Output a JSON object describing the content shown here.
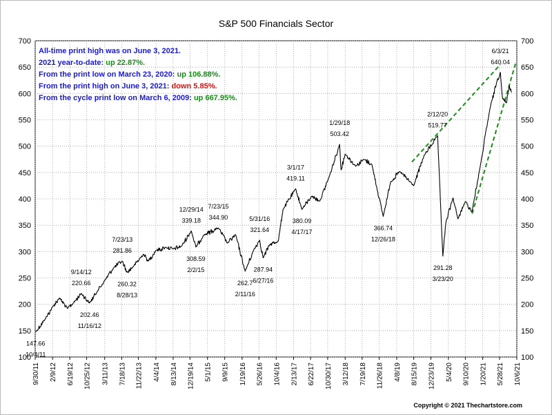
{
  "chart_data": {
    "type": "line",
    "title": "S&P 500 Financials Sector",
    "xlabel": "",
    "ylabel": "",
    "ylim": [
      100,
      700
    ],
    "yticks": [
      100,
      150,
      200,
      250,
      300,
      350,
      400,
      450,
      500,
      550,
      600,
      650,
      700
    ],
    "grid": true,
    "x_ticks": [
      "9/30/11",
      "2/9/12",
      "6/19/12",
      "10/25/12",
      "3/11/13",
      "7/18/13",
      "11/22/13",
      "4/4/14",
      "8/13/14",
      "12/19/14",
      "5/1/15",
      "9/9/15",
      "1/19/16",
      "5/26/16",
      "10/4/16",
      "2/13/17",
      "6/22/17",
      "10/30/17",
      "3/12/18",
      "7/19/18",
      "11/26/18",
      "4/8/19",
      "8/15/19",
      "12/23/19",
      "5/4/20",
      "9/10/20",
      "1/20/21",
      "5/28/21",
      "10/6/21"
    ],
    "series": [
      {
        "color": "#000000",
        "points": [
          [
            "10/4/2011",
            147.66
          ],
          [
            "12/15/2011",
            172
          ],
          [
            "2/9/2012",
            195
          ],
          [
            "4/1/2012",
            212
          ],
          [
            "6/1/2012",
            192
          ],
          [
            "7/15/2012",
            202
          ],
          [
            "9/14/2012",
            220.66
          ],
          [
            "11/16/2012",
            202.46
          ],
          [
            "1/15/2013",
            225
          ],
          [
            "3/11/2013",
            245
          ],
          [
            "5/20/2013",
            270
          ],
          [
            "7/23/2013",
            281.86
          ],
          [
            "8/28/2013",
            260.32
          ],
          [
            "10/15/2013",
            272
          ],
          [
            "12/31/2013",
            295
          ],
          [
            "2/5/2014",
            282
          ],
          [
            "4/4/2014",
            302
          ],
          [
            "6/20/2014",
            308
          ],
          [
            "8/13/2014",
            305
          ],
          [
            "10/15/2014",
            310
          ],
          [
            "12/29/2014",
            339.18
          ],
          [
            "2/2/2015",
            308.59
          ],
          [
            "4/1/2015",
            331
          ],
          [
            "7/23/2015",
            344.9
          ],
          [
            "9/29/2015",
            316
          ],
          [
            "12/1/2015",
            332
          ],
          [
            "2/11/2016",
            262.7
          ],
          [
            "4/20/2016",
            305
          ],
          [
            "5/31/2016",
            321.64
          ],
          [
            "6/27/2016",
            287.94
          ],
          [
            "8/15/2016",
            313
          ],
          [
            "10/20/2016",
            320
          ],
          [
            "11/25/2016",
            380
          ],
          [
            "3/1/2017",
            419.11
          ],
          [
            "4/17/2017",
            380.09
          ],
          [
            "7/1/2017",
            405
          ],
          [
            "9/1/2017",
            396
          ],
          [
            "11/15/2017",
            445
          ],
          [
            "1/29/2018",
            503.42
          ],
          [
            "2/9/2018",
            455
          ],
          [
            "3/12/2018",
            485
          ],
          [
            "6/1/2018",
            462
          ],
          [
            "8/1/2018",
            475
          ],
          [
            "10/1/2018",
            465
          ],
          [
            "12/26/2018",
            366.74
          ],
          [
            "2/20/2019",
            432
          ],
          [
            "5/1/2019",
            452
          ],
          [
            "8/15/2019",
            425
          ],
          [
            "11/1/2019",
            482
          ],
          [
            "2/12/2020",
            519.77
          ],
          [
            "3/23/2020",
            291.28
          ],
          [
            "4/15/2020",
            355
          ],
          [
            "6/8/2020",
            402
          ],
          [
            "7/15/2020",
            362
          ],
          [
            "9/10/2020",
            395
          ],
          [
            "10/30/2020",
            375
          ],
          [
            "12/31/2020",
            460
          ],
          [
            "3/15/2021",
            570
          ],
          [
            "5/10/2021",
            625
          ],
          [
            "6/3/2021",
            640.04
          ],
          [
            "6/20/2021",
            590
          ],
          [
            "7/19/2021",
            582
          ],
          [
            "8/10/2021",
            615
          ],
          [
            "8/27/2021",
            602
          ]
        ]
      }
    ],
    "trendlines": [
      {
        "color": "#1a8c1a",
        "from": [
          "8/1/2019",
          470
        ],
        "to": [
          "6/3/2021",
          655
        ]
      },
      {
        "color": "#1a8c1a",
        "from": [
          "11/1/2020",
          372
        ],
        "to": [
          "9/30/2021",
          660
        ]
      }
    ],
    "annotations": [
      {
        "text": "147.66",
        "date": "10/4/2011",
        "value": 147.66
      },
      {
        "text": "10/4/11",
        "date": "10/4/2011",
        "value": 147.66
      },
      {
        "text": "9/14/12",
        "date": "9/14/2012",
        "value": 220.66
      },
      {
        "text": "220.66",
        "date": "9/14/2012",
        "value": 220.66
      },
      {
        "text": "202.46",
        "date": "11/16/2012",
        "value": 202.46
      },
      {
        "text": "11/16/12",
        "date": "11/16/2012",
        "value": 202.46
      },
      {
        "text": "7/23/13",
        "date": "7/23/2013",
        "value": 281.86
      },
      {
        "text": "281.86",
        "date": "7/23/2013",
        "value": 281.86
      },
      {
        "text": "260.32",
        "date": "8/28/2013",
        "value": 260.32
      },
      {
        "text": "8/28/13",
        "date": "8/28/2013",
        "value": 260.32
      },
      {
        "text": "12/29/14",
        "date": "12/29/2014",
        "value": 339.18
      },
      {
        "text": "339.18",
        "date": "12/29/2014",
        "value": 339.18
      },
      {
        "text": "308.59",
        "date": "2/2/2015",
        "value": 308.59
      },
      {
        "text": "2/2/15",
        "date": "2/2/2015",
        "value": 308.59
      },
      {
        "text": "7/23/15",
        "date": "7/23/2015",
        "value": 344.9
      },
      {
        "text": "344.90",
        "date": "7/23/2015",
        "value": 344.9
      },
      {
        "text": "262.7",
        "date": "2/11/2016",
        "value": 262.7
      },
      {
        "text": "2/11/16",
        "date": "2/11/2016",
        "value": 262.7
      },
      {
        "text": "5/31/16",
        "date": "5/31/2016",
        "value": 321.64
      },
      {
        "text": "321.64",
        "date": "5/31/2016",
        "value": 321.64
      },
      {
        "text": "287.94",
        "date": "6/27/2016",
        "value": 287.94
      },
      {
        "text": "6/27/16",
        "date": "6/27/2016",
        "value": 287.94
      },
      {
        "text": "3/1/17",
        "date": "3/1/2017",
        "value": 419.11
      },
      {
        "text": "419.11",
        "date": "3/1/2017",
        "value": 419.11
      },
      {
        "text": "380.09",
        "date": "4/17/2017",
        "value": 380.09
      },
      {
        "text": "4/17/17",
        "date": "4/17/2017",
        "value": 380.09
      },
      {
        "text": "1/29/18",
        "date": "1/29/2018",
        "value": 503.42
      },
      {
        "text": "503.42",
        "date": "1/29/2018",
        "value": 503.42
      },
      {
        "text": "366.74",
        "date": "12/26/2018",
        "value": 366.74
      },
      {
        "text": "12/26/18",
        "date": "12/26/2018",
        "value": 366.74
      },
      {
        "text": "2/12/20",
        "date": "2/12/2020",
        "value": 519.77
      },
      {
        "text": "519.77",
        "date": "2/12/2020",
        "value": 519.77
      },
      {
        "text": "291.28",
        "date": "3/23/2020",
        "value": 291.28
      },
      {
        "text": "3/23/20",
        "date": "3/23/2020",
        "value": 291.28
      },
      {
        "text": "6/3/21",
        "date": "6/3/2021",
        "value": 640.04
      },
      {
        "text": "640.04",
        "date": "6/3/2021",
        "value": 640.04
      }
    ],
    "info_lines": [
      [
        {
          "text": "All-time print high was on June 3, 2021.",
          "color": "#1a1ad6"
        }
      ],
      [
        {
          "text": "2021 year-to-date:  ",
          "color": "#1a1ad6"
        },
        {
          "text": "up 22.87%.",
          "color": "#1a8c1a"
        }
      ],
      [
        {
          "text": "From the print low on March 23, 2020:  ",
          "color": "#1a1ad6"
        },
        {
          "text": "up 106.88%.",
          "color": "#1a8c1a"
        }
      ],
      [
        {
          "text": "From the print high on June 3, 2021:  ",
          "color": "#1a1ad6"
        },
        {
          "text": "down 5.85%.",
          "color": "#e01010"
        }
      ],
      [
        {
          "text": "From the cycle print low on March 6, 2009:  ",
          "color": "#1a1ad6"
        },
        {
          "text": "up 667.95%.",
          "color": "#1a8c1a"
        }
      ]
    ],
    "copyright": "Copyright © 2021 Thechartstore.com"
  }
}
